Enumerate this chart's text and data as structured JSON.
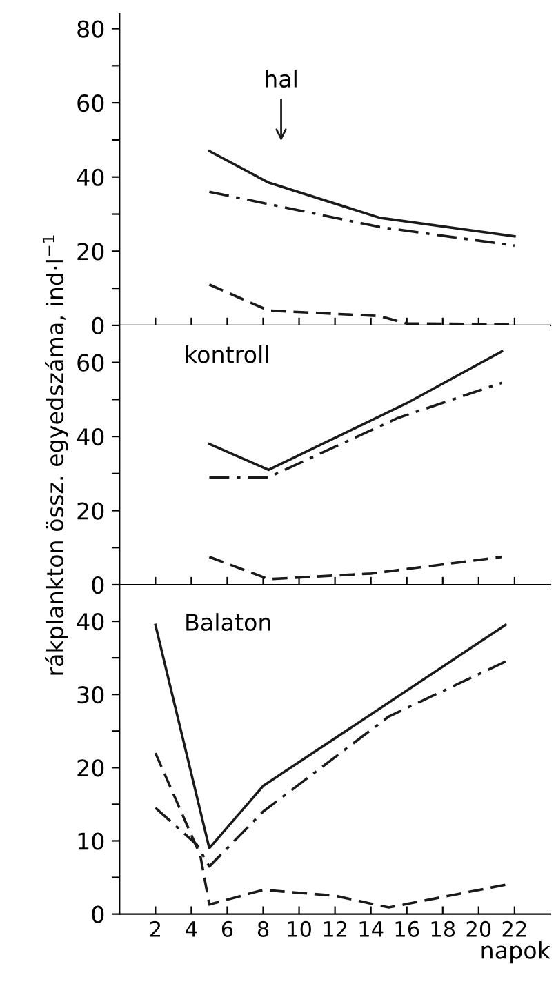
{
  "chart_data": [
    {
      "type": "line",
      "annotations": [
        "hal"
      ],
      "xlim": [
        0,
        24
      ],
      "xticks": [
        {
          "value": 2,
          "label": null
        },
        {
          "value": 4,
          "label": null
        },
        {
          "value": 6,
          "label": null
        },
        {
          "value": 8,
          "label": null
        },
        {
          "value": 10,
          "label": null
        },
        {
          "value": 12,
          "label": null
        },
        {
          "value": 14,
          "label": null
        },
        {
          "value": 16,
          "label": null
        },
        {
          "value": 18,
          "label": null
        },
        {
          "value": 20,
          "label": null
        },
        {
          "value": 22,
          "label": null
        }
      ],
      "ylim": [
        0,
        84
      ],
      "yticks": [
        0,
        {
          "value": 10,
          "label": null
        },
        20,
        {
          "value": 30,
          "label": null
        },
        40,
        {
          "value": 50,
          "label": null
        },
        60,
        {
          "value": 70,
          "label": null
        },
        80
      ],
      "tick_labels": "y",
      "grid": false,
      "legend": false,
      "series": [
        {
          "color": "#1a1a1a",
          "line_style": "solid",
          "x": [
            5,
            8.3,
            14.5,
            22
          ],
          "values": [
            47,
            38.5,
            29,
            24
          ]
        },
        {
          "color": "#1a1a1a",
          "line_style": "dashdot",
          "x": [
            5,
            14.5,
            22
          ],
          "values": [
            36,
            26.5,
            21.5
          ]
        },
        {
          "color": "#1a1a1a",
          "line_style": "dashed",
          "x": [
            5,
            8.3,
            14.5,
            16,
            22
          ],
          "values": [
            11,
            4,
            2.5,
            0.5,
            0.3
          ]
        }
      ]
    },
    {
      "type": "line",
      "subtitle": "kontroll",
      "ylabel": "rákplankton össz. egyedszáma, ind·l$^{−1}$",
      "xlim": [
        0,
        24
      ],
      "xticks": [
        {
          "value": 2,
          "label": null
        },
        {
          "value": 4,
          "label": null
        },
        {
          "value": 6,
          "label": null
        },
        {
          "value": 8,
          "label": null
        },
        {
          "value": 10,
          "label": null
        },
        {
          "value": 12,
          "label": null
        },
        {
          "value": 14,
          "label": null
        },
        {
          "value": 16,
          "label": null
        },
        {
          "value": 18,
          "label": null
        },
        {
          "value": 20,
          "label": null
        },
        {
          "value": 22,
          "label": null
        }
      ],
      "ylim": [
        0,
        70
      ],
      "yticks": [
        0,
        {
          "value": 10,
          "label": null
        },
        20,
        {
          "value": 30,
          "label": null
        },
        40,
        {
          "value": 50,
          "label": null
        },
        60
      ],
      "tick_labels": "y",
      "grid": false,
      "legend": false,
      "series": [
        {
          "color": "#1a1a1a",
          "line_style": "solid",
          "x": [
            5,
            8.3,
            16,
            21.3
          ],
          "values": [
            38,
            31,
            49,
            63
          ]
        },
        {
          "color": "#1a1a1a",
          "line_style": "dashdot",
          "x": [
            5,
            8.3,
            15.5,
            21.3
          ],
          "values": [
            29,
            29,
            45,
            54.5
          ]
        },
        {
          "color": "#1a1a1a",
          "line_style": "dashed",
          "x": [
            5,
            8.3,
            14,
            21.3
          ],
          "values": [
            7.5,
            1.5,
            3,
            7.5
          ]
        }
      ]
    },
    {
      "type": "line",
      "subtitle": "Balaton",
      "xlabel": "napok",
      "xlim": [
        0,
        24
      ],
      "xticks": [
        2,
        4,
        6,
        8,
        10,
        12,
        14,
        16,
        18,
        20,
        22
      ],
      "ylim": [
        0,
        45
      ],
      "yticks": [
        0,
        {
          "value": 5,
          "label": null
        },
        10,
        {
          "value": 15,
          "label": null
        },
        20,
        {
          "value": 25,
          "label": null
        },
        30,
        {
          "value": 35,
          "label": null
        },
        40
      ],
      "grid": false,
      "legend": false,
      "series": [
        {
          "color": "#1a1a1a",
          "line_style": "solid",
          "x": [
            2,
            5,
            8,
            21.5
          ],
          "values": [
            39.5,
            9,
            17.5,
            39.5
          ]
        },
        {
          "color": "#1a1a1a",
          "line_style": "dashdot",
          "x": [
            2,
            4.3,
            5,
            8,
            15,
            21.5
          ],
          "values": [
            14.5,
            9.5,
            6.5,
            14,
            27,
            34.5
          ]
        },
        {
          "color": "#1a1a1a",
          "line_style": "dashed",
          "x": [
            2,
            4.5,
            5,
            8,
            12,
            15,
            21.5
          ],
          "values": [
            22,
            8,
            1.3,
            3.3,
            2.5,
            0.9,
            4
          ]
        }
      ]
    }
  ]
}
